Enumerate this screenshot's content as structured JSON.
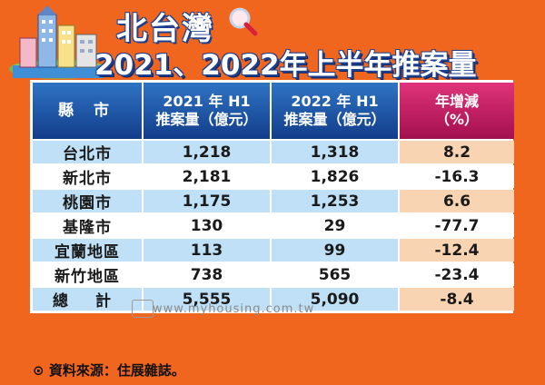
{
  "header": {
    "title": "北台灣",
    "subtitle": "2021、2022年上半年推案量"
  },
  "table": {
    "headers": {
      "city": "縣 市",
      "h1_2021_line1": "2021 年 H1",
      "h1_2021_line2": "推案量（億元）",
      "h1_2022_line1": "2022 年 H1",
      "h1_2022_line2": "推案量（億元）",
      "change_line1": "年增減",
      "change_line2": "（%）"
    },
    "rows": [
      {
        "name": "台北市",
        "v2021": "1,218",
        "v2022": "1,318",
        "change": "8.2"
      },
      {
        "name": "新北市",
        "v2021": "2,181",
        "v2022": "1,826",
        "change": "-16.3"
      },
      {
        "name": "桃園市",
        "v2021": "1,175",
        "v2022": "1,253",
        "change": "6.6"
      },
      {
        "name": "基隆市",
        "v2021": "130",
        "v2022": "29",
        "change": "-77.7"
      },
      {
        "name": "宜蘭地區",
        "v2021": "113",
        "v2022": "99",
        "change": "-12.4"
      },
      {
        "name": "新竹地區",
        "v2021": "738",
        "v2022": "565",
        "change": "-23.4"
      },
      {
        "name": "總 計",
        "v2021": "5,555",
        "v2022": "5,090",
        "change": "-8.4"
      }
    ]
  },
  "watermark": "www.myhousing.com.tw",
  "source": "資料來源：住展雜誌。",
  "colors": {
    "background": "#f0661e",
    "header_blue": "#1d4e9f",
    "header_pink": "#c8185f",
    "row_blue": "#bfe0f7",
    "row_peach": "#f9d4b2"
  }
}
